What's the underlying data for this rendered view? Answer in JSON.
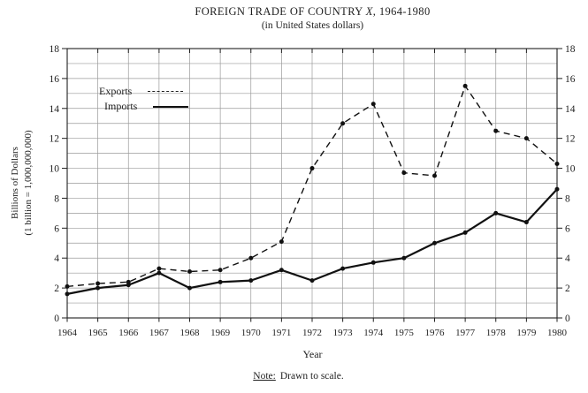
{
  "figure": {
    "title_prefix": "FOREIGN TRADE OF COUNTRY ",
    "title_x": "X",
    "title_suffix": ", 1964-1980",
    "subtitle": "(in United States dollars)",
    "note_label": "Note:",
    "note_text": "Drawn to scale."
  },
  "colors": {
    "ink": "#1f1f1f",
    "line": "#111111",
    "grid": "#9a9a9a",
    "background": "#ffffff"
  },
  "chart_data": {
    "type": "line",
    "title": "FOREIGN TRADE OF COUNTRY X, 1964-1980",
    "subtitle": "(in United States dollars)",
    "xlabel": "Year",
    "ylabel": "Billions of Dollars",
    "ylabel_line2": "(1 billion = 1,000,000,000)",
    "ylim": [
      0,
      18
    ],
    "ytick_label_step": 2,
    "y_minor_grid_step": 1,
    "grid": true,
    "legend_position": "inside-top-left",
    "x": [
      1964,
      1965,
      1966,
      1967,
      1968,
      1969,
      1970,
      1971,
      1972,
      1973,
      1974,
      1975,
      1976,
      1977,
      1978,
      1979,
      1980
    ],
    "series": [
      {
        "name": "Exports",
        "style": "dashed",
        "values": [
          2.1,
          2.3,
          2.4,
          3.3,
          3.1,
          3.2,
          4.0,
          5.1,
          10.0,
          13.0,
          14.3,
          9.7,
          9.5,
          15.5,
          12.5,
          12.0,
          10.3
        ]
      },
      {
        "name": "Imports",
        "style": "solid",
        "values": [
          1.6,
          2.0,
          2.2,
          3.0,
          2.0,
          2.4,
          2.5,
          3.2,
          2.5,
          3.3,
          3.7,
          4.0,
          5.0,
          5.7,
          7.0,
          6.4,
          8.6
        ]
      }
    ],
    "note": "Note: Drawn to scale."
  }
}
